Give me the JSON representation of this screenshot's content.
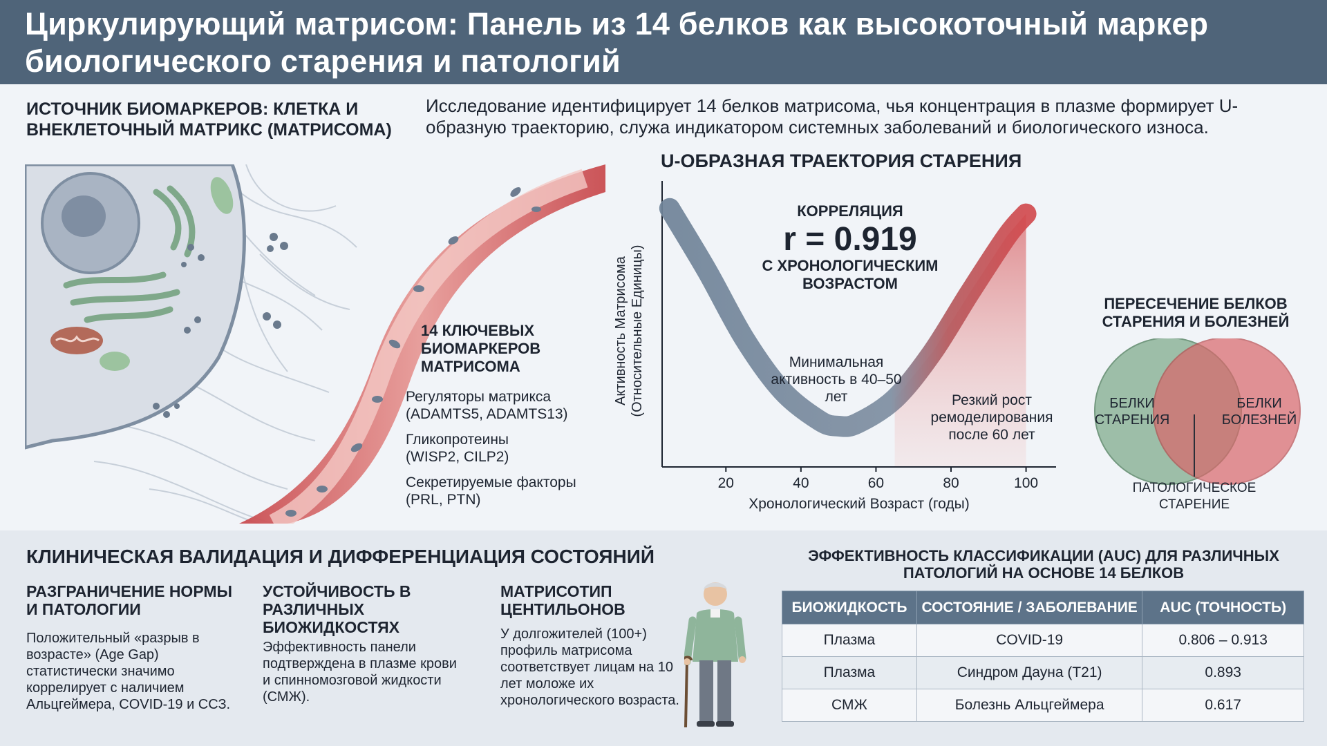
{
  "header": {
    "title": "Циркулирующий матрисом: Панель из 14 белков как высокоточный маркер биологического старения и патологий"
  },
  "source": {
    "title": "ИСТОЧНИК БИОМАРКЕРОВ: КЛЕТКА И ВНЕКЛЕТОЧНЫЙ МАТРИКС (МАТРИСОМА)"
  },
  "intro": "Исследование идентифицирует 14 белков матрисома, чья концентрация в плазме формирует U-образную траекторию, служа индикатором системных заболеваний и биологического износа.",
  "markers": {
    "title": "14 КЛЮЧЕВЫХ БИОМАРКЕРОВ МАТРИСОМА",
    "groups": [
      {
        "name": "Регуляторы матрикса",
        "items": "(ADAMTS5, ADAMTS13)"
      },
      {
        "name": "Гликопротеины",
        "items": "(WISP2, CILP2)"
      },
      {
        "name": "Секретируемые факторы",
        "items": "(PRL, PTN)"
      }
    ]
  },
  "trajectory": {
    "title": "U-ОБРАЗНАЯ ТРАЕКТОРИЯ СТАРЕНИЯ",
    "corr_label": "КОРРЕЛЯЦИЯ",
    "corr_value": "r = 0.919",
    "corr_sub": "С ХРОНОЛОГИЧЕСКИМ ВОЗРАСТОМ",
    "min_note": "Минимальная активность в 40–50 лет",
    "rise_note": "Резкий рост ремоделирования после 60 лет"
  },
  "chart_data": {
    "type": "line",
    "xlabel": "Хронологический Возраст (годы)",
    "ylabel": "Активность Матрисома (Относительные Единицы)",
    "x_ticks": [
      20,
      40,
      60,
      80,
      100
    ],
    "xlim": [
      3,
      108
    ],
    "series": [
      {
        "x": [
          5,
          15,
          25,
          35,
          45,
          50,
          55,
          65,
          75,
          85,
          95,
          100
        ],
        "y": [
          0.95,
          0.72,
          0.47,
          0.28,
          0.17,
          0.15,
          0.16,
          0.25,
          0.42,
          0.64,
          0.85,
          0.93
        ]
      }
    ],
    "highlight_x_from": 65
  },
  "venn": {
    "title": "ПЕРЕСЕЧЕНИЕ БЕЛКОВ СТАРЕНИЯ И БОЛЕЗНЕЙ",
    "left": "БЕЛКИ СТАРЕНИЯ",
    "right": "БЕЛКИ БОЛЕЗНЕЙ",
    "overlap": "ПАТОЛОГИЧЕСКОЕ СТАРЕНИЕ",
    "colors": {
      "left": "#8fb59b",
      "right": "#d9676a"
    }
  },
  "clinical": {
    "title": "КЛИНИЧЕСКАЯ ВАЛИДАЦИЯ И ДИФФЕРЕНЦИАЦИЯ СОСТОЯНИЙ",
    "columns": [
      {
        "title": "РАЗГРАНИЧЕНИЕ НОРМЫ И ПАТОЛОГИИ",
        "text": "Положительный «разрыв в возрасте» (Age Gap) статистически значимо коррелирует с наличием Альцгеймера, COVID-19 и ССЗ."
      },
      {
        "title": "УСТОЙЧИВОСТЬ В РАЗЛИЧНЫХ БИОЖИДКОСТЯХ",
        "text": "Эффективность панели подтверждена в плазме крови и спинномозговой жидкости (СМЖ)."
      },
      {
        "title": "МАТРИСОТИП ЦЕНТИЛЬОНОВ",
        "text": "У долгожителей (100+) профиль матрисома соответствует лицам на 10 лет моложе их хронологического возраста."
      }
    ]
  },
  "auc_table": {
    "title": "ЭФФЕКТИВНОСТЬ КЛАССИФИКАЦИИ (AUC) ДЛЯ РАЗЛИЧНЫХ ПАТОЛОГИЙ НА ОСНОВЕ 14 БЕЛКОВ",
    "headers": [
      "БИОЖИДКОСТЬ",
      "СОСТОЯНИЕ / ЗАБОЛЕВАНИЕ",
      "AUC (ТОЧНОСТЬ)"
    ],
    "rows": [
      [
        "Плазма",
        "COVID-19",
        "0.806 – 0.913"
      ],
      [
        "Плазма",
        "Синдром Дауна (T21)",
        "0.893"
      ],
      [
        "СМЖ",
        "Болезнь Альцгеймера",
        "0.617"
      ]
    ]
  }
}
